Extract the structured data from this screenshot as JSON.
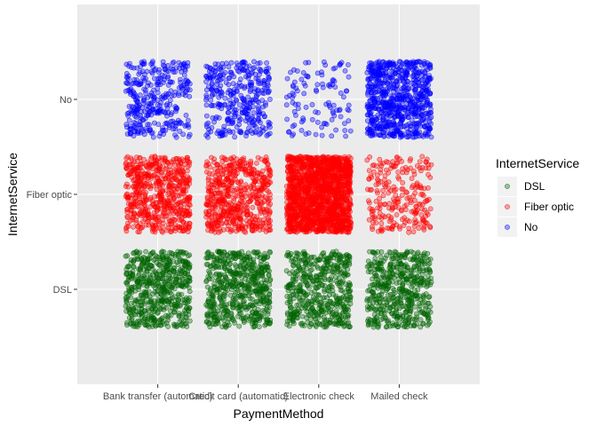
{
  "chart_data": {
    "type": "scatter",
    "jitter": true,
    "xlabel": "PaymentMethod",
    "ylabel": "InternetService",
    "x_categories": [
      "Bank transfer (automatic)",
      "Credit card (automatic)",
      "Electronic check",
      "Mailed check"
    ],
    "y_categories": [
      "DSL",
      "Fiber optic",
      "No"
    ],
    "grid": true,
    "legend": {
      "title": "InternetService",
      "position": "right",
      "entries": [
        {
          "label": "DSL",
          "color": "#006400"
        },
        {
          "label": "Fiber optic",
          "color": "#ff0000"
        },
        {
          "label": "No",
          "color": "#0000ff"
        }
      ]
    },
    "cells": [
      {
        "x": "Bank transfer (automatic)",
        "y": "DSL",
        "count": 566
      },
      {
        "x": "Bank transfer (automatic)",
        "y": "Fiber optic",
        "count": 589
      },
      {
        "x": "Bank transfer (automatic)",
        "y": "No",
        "count": 331
      },
      {
        "x": "Credit card (automatic)",
        "y": "DSL",
        "count": 569
      },
      {
        "x": "Credit card (automatic)",
        "y": "Fiber optic",
        "count": 553
      },
      {
        "x": "Credit card (automatic)",
        "y": "No",
        "count": 343
      },
      {
        "x": "Electronic check",
        "y": "DSL",
        "count": 512
      },
      {
        "x": "Electronic check",
        "y": "Fiber optic",
        "count": 1595
      },
      {
        "x": "Electronic check",
        "y": "No",
        "count": 110
      },
      {
        "x": "Mailed check",
        "y": "DSL",
        "count": 508
      },
      {
        "x": "Mailed check",
        "y": "Fiber optic",
        "count": 232
      },
      {
        "x": "Mailed check",
        "y": "No",
        "count": 742
      }
    ]
  }
}
